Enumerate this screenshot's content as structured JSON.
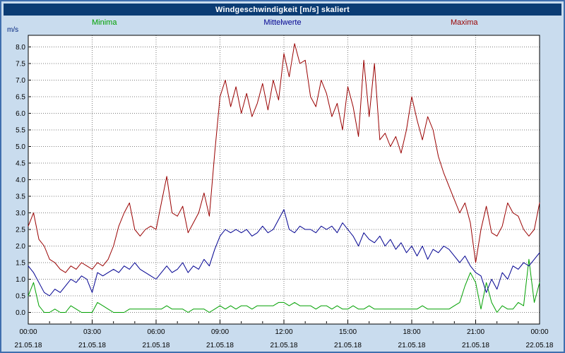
{
  "window": {
    "title": "Windgeschwindigkeit [m/s] skaliert"
  },
  "legend": {
    "minima": "Minima",
    "mittelwerte": "Mittelwerte",
    "maxima": "Maxima"
  },
  "colors": {
    "frame_bg": "#c9dcee",
    "border": "#3f6fae",
    "title_bg": "#0b3c74",
    "title_fg": "#ffffff",
    "plot_bg": "#ffffff",
    "grid": "#7d7d7d",
    "axis": "#000000",
    "tick_text": "#000000",
    "minima": "#00a000",
    "mittelwerte": "#000090",
    "maxima": "#990000",
    "unit_label": "#00247d"
  },
  "chart_data": {
    "type": "line",
    "title": "Windgeschwindigkeit [m/s] skaliert",
    "ylabel": "m/s",
    "xlabel": "",
    "ylim": [
      0.0,
      8.0
    ],
    "ytick_step": 0.5,
    "ytick_labels": [
      "0.0",
      "0.5",
      "1.0",
      "1.5",
      "2.0",
      "2.5",
      "3.0",
      "3.5",
      "4.0",
      "4.5",
      "5.0",
      "5.5",
      "6.0",
      "6.5",
      "7.0",
      "7.5",
      "8.0"
    ],
    "grid": "dotted",
    "legend_position": "top",
    "x_hours_span": 24,
    "x_minor_tick_hours": 1,
    "x_major_ticks": [
      {
        "hour": 0,
        "time": "00:00",
        "date": "21.05.18"
      },
      {
        "hour": 3,
        "time": "03:00",
        "date": "21.05.18"
      },
      {
        "hour": 6,
        "time": "06:00",
        "date": "21.05.18"
      },
      {
        "hour": 9,
        "time": "09:00",
        "date": "21.05.18"
      },
      {
        "hour": 12,
        "time": "12:00",
        "date": "21.05.18"
      },
      {
        "hour": 15,
        "time": "15:00",
        "date": "21.05.18"
      },
      {
        "hour": 18,
        "time": "18:00",
        "date": "21.05.18"
      },
      {
        "hour": 21,
        "time": "21:00",
        "date": "21.05.18"
      },
      {
        "hour": 24,
        "time": "00:00",
        "date": "22.05.18"
      }
    ],
    "sample_interval_minutes": 15,
    "series": [
      {
        "name": "Minima",
        "color": "#00a000",
        "values": [
          0.5,
          0.9,
          0.2,
          0.0,
          0.0,
          0.1,
          0.0,
          0.0,
          0.2,
          0.1,
          0.0,
          0.0,
          0.0,
          0.3,
          0.2,
          0.1,
          0.0,
          0.0,
          0.0,
          0.1,
          0.1,
          0.1,
          0.1,
          0.1,
          0.1,
          0.1,
          0.2,
          0.1,
          0.1,
          0.1,
          0.0,
          0.1,
          0.1,
          0.1,
          0.0,
          0.1,
          0.2,
          0.1,
          0.2,
          0.1,
          0.2,
          0.2,
          0.1,
          0.2,
          0.2,
          0.2,
          0.2,
          0.3,
          0.3,
          0.2,
          0.3,
          0.2,
          0.2,
          0.2,
          0.1,
          0.2,
          0.2,
          0.1,
          0.2,
          0.1,
          0.1,
          0.2,
          0.1,
          0.1,
          0.2,
          0.1,
          0.1,
          0.1,
          0.1,
          0.1,
          0.1,
          0.1,
          0.1,
          0.1,
          0.2,
          0.1,
          0.1,
          0.1,
          0.1,
          0.1,
          0.2,
          0.3,
          0.8,
          1.2,
          0.9,
          0.1,
          0.9,
          0.3,
          0.0,
          0.2,
          0.1,
          0.1,
          0.3,
          0.2,
          1.6,
          0.3,
          0.9
        ]
      },
      {
        "name": "Mittelwerte",
        "color": "#000090",
        "values": [
          1.4,
          1.2,
          0.9,
          0.6,
          0.5,
          0.7,
          0.6,
          0.8,
          1.0,
          0.9,
          1.1,
          1.0,
          0.6,
          1.2,
          1.1,
          1.2,
          1.3,
          1.2,
          1.4,
          1.3,
          1.5,
          1.3,
          1.2,
          1.1,
          1.0,
          1.2,
          1.4,
          1.2,
          1.3,
          1.5,
          1.2,
          1.4,
          1.3,
          1.6,
          1.4,
          1.9,
          2.3,
          2.5,
          2.4,
          2.5,
          2.4,
          2.5,
          2.3,
          2.4,
          2.6,
          2.4,
          2.5,
          2.8,
          3.1,
          2.5,
          2.4,
          2.6,
          2.5,
          2.5,
          2.4,
          2.6,
          2.5,
          2.6,
          2.4,
          2.7,
          2.5,
          2.3,
          2.0,
          2.4,
          2.2,
          2.1,
          2.3,
          2.0,
          2.2,
          1.9,
          2.1,
          1.8,
          2.0,
          1.7,
          2.0,
          1.6,
          1.9,
          1.8,
          2.0,
          1.9,
          1.7,
          1.5,
          1.7,
          1.4,
          1.2,
          1.1,
          0.6,
          1.0,
          0.7,
          1.2,
          1.0,
          1.4,
          1.3,
          1.5,
          1.4,
          1.6,
          1.8
        ]
      },
      {
        "name": "Maxima",
        "color": "#990000",
        "values": [
          2.6,
          3.0,
          2.2,
          2.0,
          1.6,
          1.5,
          1.3,
          1.2,
          1.4,
          1.3,
          1.5,
          1.4,
          1.3,
          1.5,
          1.4,
          1.6,
          2.0,
          2.6,
          3.0,
          3.3,
          2.5,
          2.3,
          2.5,
          2.6,
          2.5,
          3.3,
          4.1,
          3.0,
          2.9,
          3.2,
          2.4,
          2.7,
          3.0,
          3.6,
          2.9,
          4.8,
          6.5,
          7.0,
          6.2,
          6.8,
          6.0,
          6.6,
          5.9,
          6.3,
          6.9,
          6.1,
          7.0,
          6.4,
          7.8,
          7.1,
          8.1,
          7.5,
          7.6,
          6.5,
          6.2,
          7.0,
          6.6,
          5.9,
          6.3,
          5.5,
          6.8,
          6.2,
          5.3,
          7.6,
          5.9,
          7.5,
          5.2,
          5.4,
          5.0,
          5.3,
          4.8,
          5.5,
          6.5,
          5.8,
          5.2,
          5.9,
          5.5,
          4.7,
          4.2,
          3.8,
          3.4,
          3.0,
          3.3,
          2.7,
          1.5,
          2.5,
          3.2,
          2.4,
          2.3,
          2.6,
          3.3,
          3.0,
          2.9,
          2.5,
          2.3,
          2.5,
          3.3
        ]
      }
    ]
  }
}
